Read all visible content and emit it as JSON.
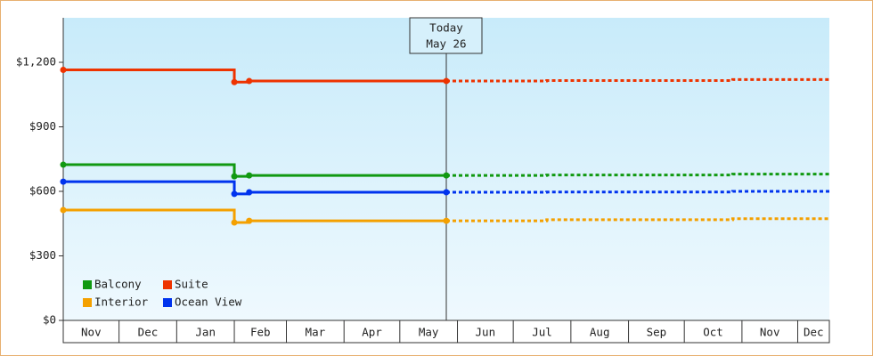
{
  "chart_data": {
    "type": "step-line",
    "annotation": {
      "x": 206,
      "lines": [
        "Today",
        "May 26"
      ]
    },
    "xlim": [
      0,
      412
    ],
    "xticks": [
      {
        "value": 0,
        "label": "Nov"
      },
      {
        "value": 30,
        "label": "Dec"
      },
      {
        "value": 61,
        "label": "Jan"
      },
      {
        "value": 92,
        "label": "Feb"
      },
      {
        "value": 120,
        "label": "Mar"
      },
      {
        "value": 151,
        "label": "Apr"
      },
      {
        "value": 181,
        "label": "May"
      },
      {
        "value": 212,
        "label": "Jun"
      },
      {
        "value": 242,
        "label": "Jul"
      },
      {
        "value": 273,
        "label": "Aug"
      },
      {
        "value": 304,
        "label": "Sep"
      },
      {
        "value": 334,
        "label": "Oct"
      },
      {
        "value": 365,
        "label": "Nov"
      },
      {
        "value": 395,
        "label": "Dec"
      }
    ],
    "ylim": [
      0,
      1407
    ],
    "yticks": [
      {
        "value": 0,
        "label": "$0"
      },
      {
        "value": 300,
        "label": "$300"
      },
      {
        "value": 600,
        "label": "$600"
      },
      {
        "value": 900,
        "label": "$900"
      },
      {
        "value": 1200,
        "label": "$1,200"
      }
    ],
    "x": [
      0,
      92,
      100,
      206
    ],
    "projection_x": [
      206,
      260,
      360,
      412
    ],
    "series": [
      {
        "name": "Balcony",
        "color": "#119911",
        "values": [
          724,
          670,
          674,
          674
        ],
        "projection": [
          674,
          676,
          680,
          680
        ]
      },
      {
        "name": "Suite",
        "color": "#ee3300",
        "values": [
          1165,
          1108,
          1113,
          1113
        ],
        "projection": [
          1113,
          1115,
          1120,
          1120
        ]
      },
      {
        "name": "Interior",
        "color": "#f4a000",
        "values": [
          513,
          455,
          463,
          463
        ],
        "projection": [
          463,
          468,
          473,
          473
        ]
      },
      {
        "name": "Ocean View",
        "color": "#0033ee",
        "values": [
          645,
          588,
          596,
          596
        ],
        "projection": [
          596,
          597,
          600,
          600
        ]
      }
    ]
  }
}
